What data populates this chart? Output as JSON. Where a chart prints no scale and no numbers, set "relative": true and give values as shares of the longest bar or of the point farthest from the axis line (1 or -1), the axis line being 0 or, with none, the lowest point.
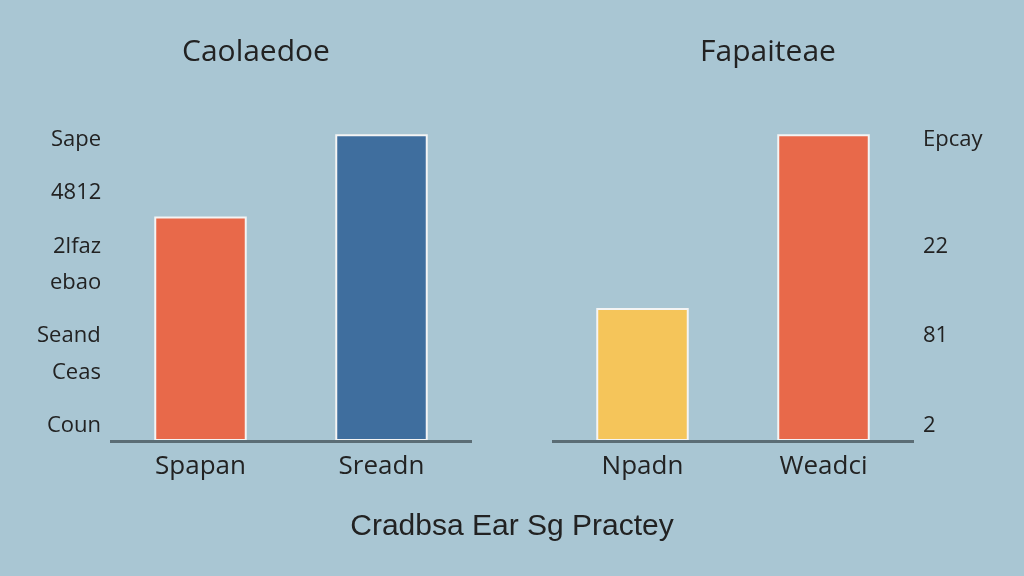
{
  "chart_data": [
    {
      "type": "bar",
      "title": "Caolaedoe",
      "xlabel": "Cradbsa Ear Sg Practey",
      "relative": true,
      "categories": [
        "Spapan",
        "Sreadn"
      ],
      "values": [
        0.73,
        1
      ],
      "colors": [
        "#e8694a",
        "#3f6e9e"
      ],
      "annotations": [
        "Sape",
        "4812",
        "2lfaz",
        "ebao",
        "Seand",
        "Ceas",
        "Coun"
      ]
    },
    {
      "type": "bar",
      "title": "Fapaiteae",
      "relative": true,
      "categories": [
        "Npadn",
        "Weadci"
      ],
      "values": [
        0.43,
        1
      ],
      "colors": [
        "#f5c55a",
        "#e8694a"
      ],
      "annotations": [
        "Epcay",
        "22",
        "81",
        "2"
      ]
    }
  ]
}
